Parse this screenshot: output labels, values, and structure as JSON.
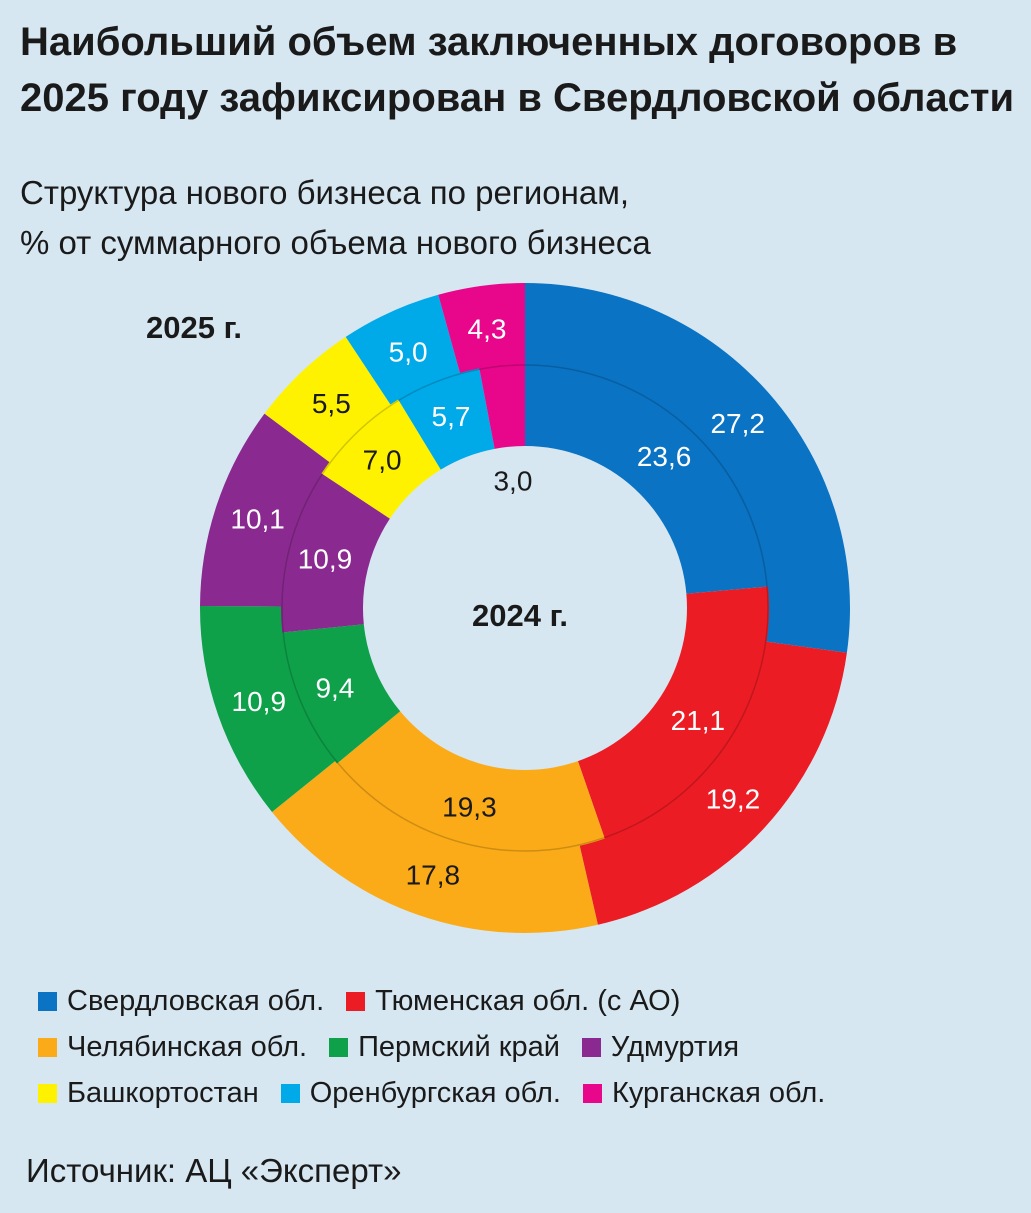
{
  "title": "Наибольший объем заключенных договоров в 2025 году зафиксирован в Свердловской области",
  "subtitle_line1": "Структура нового бизнеса по регионам,",
  "subtitle_line2": "% от суммарного объема нового бизнеса",
  "source": "Источник: АЦ «Эксперт»",
  "colors": {
    "background": "#d6e7f2",
    "sverdlovsk": "#0a73c4",
    "tyumen": "#ec1c24",
    "chelyabinsk": "#fbab18",
    "perm": "#0ea14a",
    "udmurtia": "#8a2a90",
    "bashkortostan": "#fff200",
    "orenburg": "#00a9e8",
    "kurgan": "#e8078b"
  },
  "chart_data": {
    "type": "donut",
    "title": "Структура нового бизнеса по регионам",
    "unit": "%",
    "categories": [
      "Свердловская обл.",
      "Тюменская обл. (с АО)",
      "Челябинская обл.",
      "Пермский край",
      "Удмуртия",
      "Башкортостан",
      "Оренбургская обл.",
      "Курганская обл."
    ],
    "series": [
      {
        "name": "2025 г.",
        "ring": "outer",
        "values": [
          27.2,
          19.2,
          17.8,
          10.9,
          10.1,
          5.5,
          5.0,
          4.3
        ],
        "labels": [
          "27,2",
          "19,2",
          "17,8",
          "10,9",
          "10,1",
          "5,5",
          "5,0",
          "4,3"
        ]
      },
      {
        "name": "2024 г.",
        "ring": "inner",
        "values": [
          23.6,
          21.1,
          19.3,
          9.4,
          10.9,
          7.0,
          5.7,
          3.0
        ],
        "labels": [
          "23,6",
          "21,1",
          "19,3",
          "9,4",
          "10,9",
          "7,0",
          "5,7",
          "3,0"
        ]
      }
    ],
    "legend": [
      {
        "label": "Свердловская обл.",
        "color": "#0a73c4"
      },
      {
        "label": "Тюменская обл. (с АО)",
        "color": "#ec1c24"
      },
      {
        "label": "Челябинская обл.",
        "color": "#fbab18"
      },
      {
        "label": "Пермский край",
        "color": "#0ea14a"
      },
      {
        "label": "Удмуртия",
        "color": "#8a2a90"
      },
      {
        "label": "Башкортостан",
        "color": "#fff200"
      },
      {
        "label": "Оренбургская обл.",
        "color": "#00a9e8"
      },
      {
        "label": "Курганская обл.",
        "color": "#e8078b"
      }
    ],
    "legend_position": "bottom"
  }
}
